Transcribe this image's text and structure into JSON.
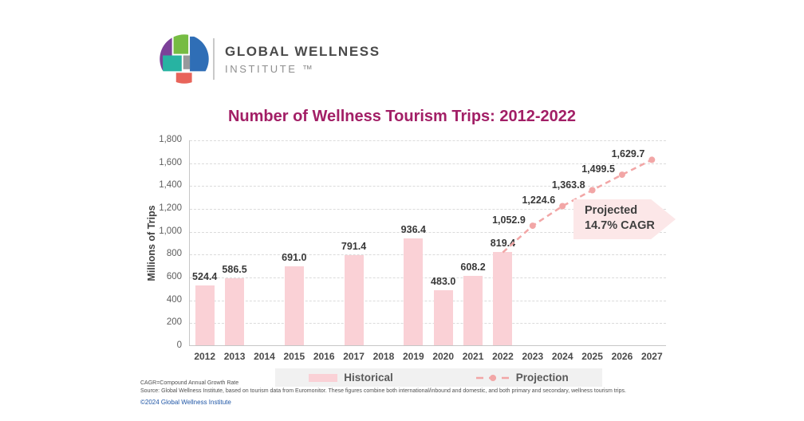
{
  "header": {
    "brand_line1": "GLOBAL WELLNESS",
    "brand_line2": "INSTITUTE ™",
    "logo_colors": {
      "purple": "#7c4199",
      "green": "#76bc43",
      "blue": "#2f6eb6",
      "teal": "#27b3a2",
      "gray": "#97999c",
      "red": "#e8645a"
    }
  },
  "title": {
    "text": "Number of Wellness Tourism Trips: 2012-2022",
    "color": "#a21f66"
  },
  "chart_data": {
    "type": "bar+line",
    "title": "Number of Wellness Tourism Trips: 2012-2022",
    "categories": [
      "2012",
      "2013",
      "2014",
      "2015",
      "2016",
      "2017",
      "2018",
      "2019",
      "2020",
      "2021",
      "2022",
      "2023",
      "2024",
      "2025",
      "2026",
      "2027"
    ],
    "ylabel": "Millions of Trips",
    "xlabel": "",
    "ylim": [
      0,
      1800
    ],
    "ytick_step": 200,
    "grid": true,
    "legend_position": "bottom",
    "series": [
      {
        "name": "Historical",
        "type": "bar",
        "color": "#fad1d6",
        "values": [
          524.4,
          586.5,
          null,
          691.0,
          null,
          791.4,
          null,
          936.4,
          483.0,
          608.2,
          819.4,
          null,
          null,
          null,
          null,
          null
        ]
      },
      {
        "name": "Projection",
        "type": "line",
        "style": "dashed",
        "color": "#f2a6a6",
        "dot_from_index": 11,
        "values": [
          null,
          null,
          null,
          null,
          null,
          null,
          null,
          null,
          null,
          null,
          819.4,
          1052.9,
          1224.6,
          1363.8,
          1499.5,
          1629.7
        ]
      }
    ]
  },
  "annotation": {
    "line1": "Projected",
    "line2": "14.7% CAGR",
    "bg_color": "#fce7e8"
  },
  "legend": {
    "historical": "Historical",
    "projection": "Projection"
  },
  "footer": {
    "line1": "CAGR=Compound Annual Growth Rate",
    "line2": "Source: Global Wellness Institute, based on tourism data from Euromonitor. These figures combine both international/inbound and domestic, and both primary and secondary, wellness tourism trips.",
    "line3": "©2024 Global Wellness Institute"
  }
}
